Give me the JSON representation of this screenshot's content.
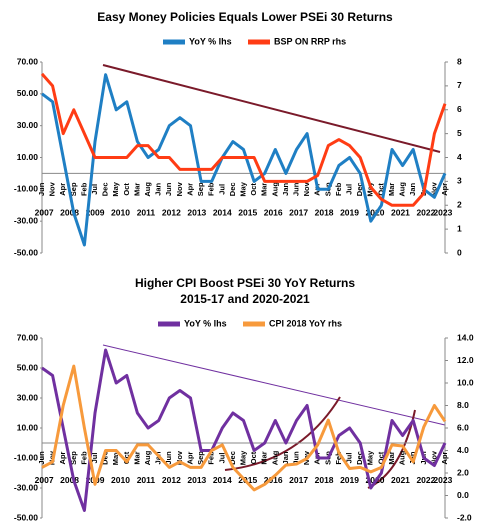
{
  "chart_data": [
    {
      "type": "line",
      "title": "Easy Money Policies Equals Lower PSEi 30 Returns",
      "categories": [
        "Jun",
        "Nov",
        "Apr",
        "Sep",
        "Feb",
        "Jul",
        "Dec",
        "May",
        "Oct",
        "Mar",
        "Aug",
        "Jan",
        "Jun",
        "Nov",
        "Apr",
        "Sep",
        "Feb",
        "Jul",
        "Dec",
        "May",
        "Oct",
        "Mar",
        "Aug",
        "Jan",
        "Jun",
        "Nov",
        "Apr",
        "Sep",
        "Feb",
        "Jul",
        "Dec",
        "May",
        "Oct",
        "Mar",
        "Aug",
        "Jan",
        "Jun",
        "Nov",
        "Apr"
      ],
      "years": [
        "2007",
        "2008",
        "2009",
        "2010",
        "2011",
        "2012",
        "2013",
        "2014",
        "2015",
        "2016",
        "2017",
        "2018",
        "2019",
        "2020",
        "2021",
        "2022",
        "2023"
      ],
      "series": [
        {
          "name": "YoY % lhs",
          "color": "#1f7fc4",
          "values": [
            50,
            45,
            10,
            -25,
            -45,
            20,
            62,
            40,
            45,
            20,
            10,
            15,
            30,
            35,
            30,
            -5,
            -5,
            10,
            20,
            15,
            -5,
            0,
            15,
            0,
            15,
            25,
            -10,
            -10,
            5,
            10,
            0,
            -30,
            -20,
            15,
            5,
            15,
            -10,
            -15,
            0
          ]
        },
        {
          "name": "BSP ON RRP rhs",
          "color": "#ff3c14",
          "axis": "y2",
          "values": [
            7.5,
            7.0,
            5.0,
            6.0,
            5.0,
            4.0,
            4.0,
            4.0,
            4.0,
            4.5,
            4.5,
            4.0,
            4.0,
            3.5,
            3.5,
            3.5,
            3.5,
            4.0,
            4.0,
            4.0,
            4.0,
            3.0,
            3.0,
            3.0,
            3.0,
            3.0,
            3.25,
            4.5,
            4.75,
            4.5,
            4.0,
            2.75,
            2.25,
            2.0,
            2.0,
            2.0,
            2.5,
            5.0,
            6.25
          ]
        }
      ],
      "ylim": [
        -50,
        70
      ],
      "yticks": [
        {
          "value": -50,
          "label": "-50.00"
        },
        {
          "value": -30,
          "label": "-30.00"
        },
        {
          "value": -10,
          "label": "-10.00"
        },
        {
          "value": 10,
          "label": "10.00"
        },
        {
          "value": 30,
          "label": "30.00"
        },
        {
          "value": 50,
          "label": "50.00"
        },
        {
          "value": 70,
          "label": "70.00"
        }
      ],
      "y2lim": [
        0,
        8
      ],
      "y2ticks": [
        0,
        1,
        2,
        3,
        4,
        5,
        6,
        7,
        8
      ],
      "grid": false
    },
    {
      "type": "line",
      "title": "Higher CPI Boost PSEi 30 YoY Returns",
      "subtitle": "2015-17 and 2020-2021",
      "categories": [
        "Jun",
        "Nov",
        "Apr",
        "Sep",
        "Feb",
        "Jul",
        "Dec",
        "May",
        "Oct",
        "Mar",
        "Aug",
        "Jan",
        "Jun",
        "Nov",
        "Apr",
        "Sep",
        "Feb",
        "Jul",
        "Dec",
        "May",
        "Oct",
        "Mar",
        "Aug",
        "Jan",
        "Jun",
        "Nov",
        "Apr",
        "Sep",
        "Feb",
        "Jul",
        "Dec",
        "May",
        "Oct",
        "Mar",
        "Aug",
        "Jan",
        "Jun",
        "Nov",
        "Apr"
      ],
      "years": [
        "2007",
        "2008",
        "2009",
        "2010",
        "2011",
        "2012",
        "2013",
        "2014",
        "2015",
        "2016",
        "2017",
        "2018",
        "2019",
        "2020",
        "2021",
        "2022",
        "2023"
      ],
      "series": [
        {
          "name": "YoY % lhs",
          "color": "#7030a0",
          "values": [
            50,
            45,
            10,
            -25,
            -45,
            20,
            62,
            40,
            45,
            20,
            10,
            15,
            30,
            35,
            30,
            -5,
            -5,
            10,
            20,
            15,
            -5,
            0,
            15,
            0,
            15,
            25,
            -10,
            -10,
            5,
            10,
            0,
            -30,
            -20,
            15,
            5,
            15,
            -10,
            -15,
            0
          ]
        },
        {
          "name": "CPI 2018  YoY rhs",
          "color": "#f79a3c",
          "axis": "y2",
          "values": [
            2.5,
            3.0,
            8.0,
            11.5,
            6.0,
            1.0,
            4.0,
            4.0,
            3.0,
            4.5,
            4.5,
            3.5,
            2.5,
            3.0,
            2.5,
            2.5,
            4.0,
            4.5,
            2.5,
            1.5,
            0.5,
            1.0,
            1.8,
            2.7,
            2.8,
            3.3,
            4.5,
            6.7,
            3.8,
            2.4,
            2.5,
            2.1,
            2.5,
            4.5,
            4.4,
            3.0,
            6.1,
            8.0,
            6.6
          ]
        }
      ],
      "ylim": [
        -50,
        70
      ],
      "yticks": [
        {
          "value": -50,
          "label": "-50.00"
        },
        {
          "value": -30,
          "label": "-30.00"
        },
        {
          "value": -10,
          "label": "-10.00"
        },
        {
          "value": 10,
          "label": "10.00"
        },
        {
          "value": 30,
          "label": "30.00"
        },
        {
          "value": 50,
          "label": "50.00"
        },
        {
          "value": 70,
          "label": "70.00"
        }
      ],
      "y2lim": [
        -2,
        14
      ],
      "y2ticks": [
        {
          "value": -2,
          "label": "-2.0"
        },
        {
          "value": 0,
          "label": "0.0"
        },
        {
          "value": 2,
          "label": "2.0"
        },
        {
          "value": 4,
          "label": "4.0"
        },
        {
          "value": 6,
          "label": "6.0"
        },
        {
          "value": 8,
          "label": "8.0"
        },
        {
          "value": 10,
          "label": "10.0"
        },
        {
          "value": 12,
          "label": "12.0"
        },
        {
          "value": 14,
          "label": "14.0"
        }
      ],
      "grid": false
    }
  ]
}
